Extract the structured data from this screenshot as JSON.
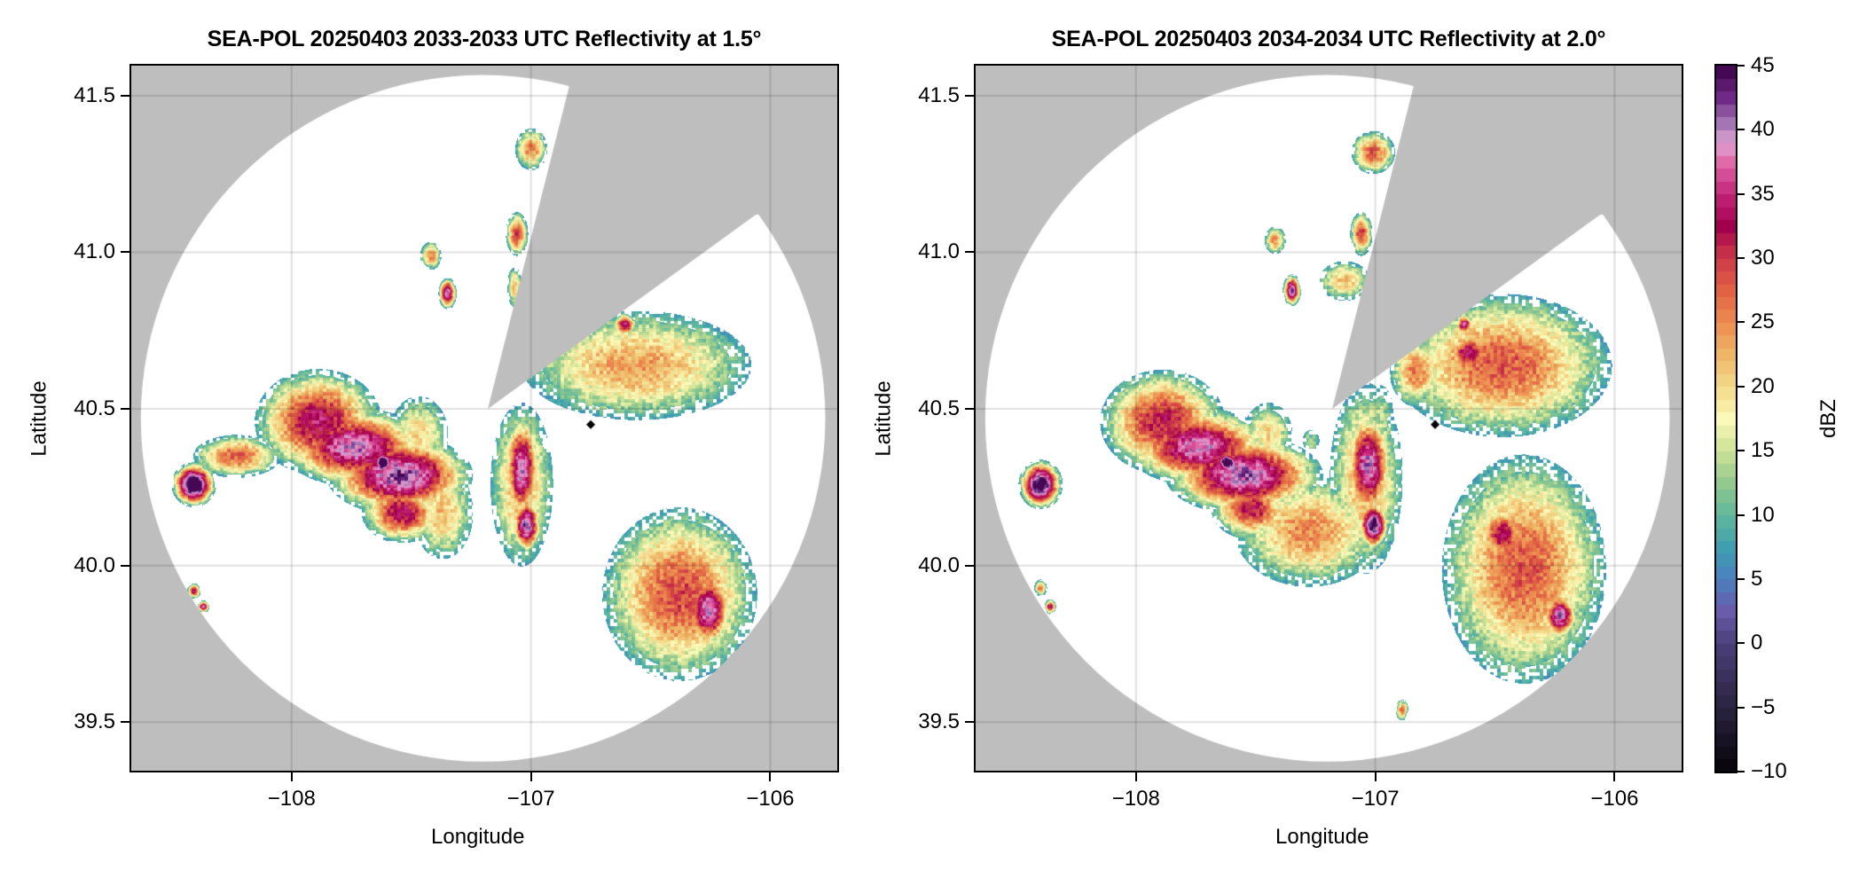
{
  "chart_data": [
    {
      "type": "heatmap",
      "subtype": "radar-ppi",
      "title": "SEA-POL 20250403 2033-2033 UTC Reflectivity at 1.5°",
      "xlabel": "Longitude",
      "ylabel": "Latitude",
      "xlim": [
        -108.67,
        -105.72
      ],
      "ylim": [
        39.345,
        41.596
      ],
      "xticks": [
        -108,
        -107,
        -106
      ],
      "xtick_labels": [
        "−108",
        "−107",
        "−106"
      ],
      "yticks": [
        39.5,
        40.0,
        40.5,
        41.0,
        41.5
      ],
      "ytick_labels": [
        "39.5",
        "40.0",
        "40.5",
        "41.0",
        "41.5"
      ],
      "grid": true,
      "radar_site": {
        "lon": -107.18,
        "lat": 40.5
      },
      "marker": {
        "lon": -106.75,
        "lat": 40.45,
        "shape": "diamond",
        "color": "#000000"
      },
      "coverage_circle": {
        "center_lon": -107.2,
        "center_lat": 40.47,
        "radius_lon": 1.43,
        "radius_lat": 1.096
      },
      "blocked_sector": [
        {
          "lon": -106.84,
          "lat": 41.53
        },
        {
          "lon": -106.06,
          "lat": 41.12
        }
      ],
      "cells": [
        {
          "lon": -107.89,
          "lat": 40.46,
          "slon": 0.11,
          "slat": 0.07,
          "dbz": 24
        },
        {
          "lon": -107.74,
          "lat": 40.38,
          "slon": 0.12,
          "slat": 0.05,
          "dbz": 30
        },
        {
          "lon": -107.55,
          "lat": 40.29,
          "slon": 0.12,
          "slat": 0.05,
          "dbz": 32
        },
        {
          "lon": -107.62,
          "lat": 40.33,
          "slon": 0.02,
          "slat": 0.015,
          "dbz": 42
        },
        {
          "lon": -107.54,
          "lat": 40.17,
          "slon": 0.07,
          "slat": 0.04,
          "dbz": 24
        },
        {
          "lon": -107.47,
          "lat": 40.42,
          "slon": 0.06,
          "slat": 0.06,
          "dbz": 10
        },
        {
          "lon": -108.41,
          "lat": 40.26,
          "slon": 0.035,
          "slat": 0.027,
          "dbz": 41
        },
        {
          "lon": -108.23,
          "lat": 40.35,
          "slon": 0.08,
          "slat": 0.03,
          "dbz": 18
        },
        {
          "lon": -107.04,
          "lat": 40.31,
          "slon": 0.03,
          "slat": 0.07,
          "dbz": 30
        },
        {
          "lon": -107.02,
          "lat": 40.13,
          "slon": 0.025,
          "slat": 0.035,
          "dbz": 32
        },
        {
          "lon": -107.04,
          "lat": 40.26,
          "slon": 0.06,
          "slat": 0.12,
          "dbz": 14
        },
        {
          "lon": -107.37,
          "lat": 40.17,
          "slon": 0.06,
          "slat": 0.07,
          "dbz": 12
        },
        {
          "lon": -106.56,
          "lat": 40.64,
          "slon": 0.22,
          "slat": 0.08,
          "dbz": 14
        },
        {
          "lon": -106.61,
          "lat": 40.77,
          "slon": 0.02,
          "slat": 0.015,
          "dbz": 26
        },
        {
          "lon": -106.38,
          "lat": 39.91,
          "slon": 0.14,
          "slat": 0.12,
          "dbz": 19
        },
        {
          "lon": -106.26,
          "lat": 39.86,
          "slon": 0.04,
          "slat": 0.05,
          "dbz": 30
        },
        {
          "lon": -107.35,
          "lat": 40.87,
          "slon": 0.015,
          "slat": 0.02,
          "dbz": 30
        },
        {
          "lon": -107.0,
          "lat": 41.33,
          "slon": 0.03,
          "slat": 0.03,
          "dbz": 16
        },
        {
          "lon": -107.06,
          "lat": 41.06,
          "slon": 0.02,
          "slat": 0.03,
          "dbz": 20
        },
        {
          "lon": -107.42,
          "lat": 40.99,
          "slon": 0.02,
          "slat": 0.02,
          "dbz": 16
        },
        {
          "lon": -107.07,
          "lat": 40.89,
          "slon": 0.015,
          "slat": 0.03,
          "dbz": 12
        },
        {
          "lon": -108.41,
          "lat": 39.92,
          "slon": 0.012,
          "slat": 0.01,
          "dbz": 24
        },
        {
          "lon": -108.37,
          "lat": 39.87,
          "slon": 0.01,
          "slat": 0.008,
          "dbz": 28
        }
      ]
    },
    {
      "type": "heatmap",
      "subtype": "radar-ppi",
      "title": "SEA-POL 20250403 2034-2034 UTC Reflectivity at 2.0°",
      "xlabel": "Longitude",
      "ylabel": "Latitude",
      "xlim": [
        -108.67,
        -105.72
      ],
      "ylim": [
        39.345,
        41.596
      ],
      "xticks": [
        -108,
        -107,
        -106
      ],
      "xtick_labels": [
        "−108",
        "−107",
        "−106"
      ],
      "yticks": [
        39.5,
        40.0,
        40.5,
        41.0,
        41.5
      ],
      "ytick_labels": [
        "39.5",
        "40.0",
        "40.5",
        "41.0",
        "41.5"
      ],
      "grid": true,
      "radar_site": {
        "lon": -107.18,
        "lat": 40.5
      },
      "marker": {
        "lon": -106.75,
        "lat": 40.45,
        "shape": "diamond",
        "color": "#000000"
      },
      "coverage_circle": {
        "center_lon": -107.2,
        "center_lat": 40.47,
        "radius_lon": 1.43,
        "radius_lat": 1.096
      },
      "blocked_sector": [
        {
          "lon": -106.84,
          "lat": 41.53
        },
        {
          "lon": -106.06,
          "lat": 41.12
        }
      ],
      "cells": [
        {
          "lon": -107.89,
          "lat": 40.46,
          "slon": 0.11,
          "slat": 0.07,
          "dbz": 22
        },
        {
          "lon": -107.74,
          "lat": 40.38,
          "slon": 0.12,
          "slat": 0.05,
          "dbz": 29
        },
        {
          "lon": -107.55,
          "lat": 40.29,
          "slon": 0.13,
          "slat": 0.05,
          "dbz": 31
        },
        {
          "lon": -107.62,
          "lat": 40.33,
          "slon": 0.02,
          "slat": 0.015,
          "dbz": 41
        },
        {
          "lon": -107.52,
          "lat": 40.18,
          "slon": 0.07,
          "slat": 0.04,
          "dbz": 22
        },
        {
          "lon": -107.45,
          "lat": 40.42,
          "slon": 0.05,
          "slat": 0.05,
          "dbz": 10
        },
        {
          "lon": -108.4,
          "lat": 40.26,
          "slon": 0.035,
          "slat": 0.03,
          "dbz": 38
        },
        {
          "lon": -107.03,
          "lat": 40.32,
          "slon": 0.04,
          "slat": 0.07,
          "dbz": 30
        },
        {
          "lon": -107.01,
          "lat": 40.13,
          "slon": 0.025,
          "slat": 0.03,
          "dbz": 36
        },
        {
          "lon": -107.04,
          "lat": 40.28,
          "slon": 0.07,
          "slat": 0.14,
          "dbz": 14
        },
        {
          "lon": -106.98,
          "lat": 40.49,
          "slon": 0.03,
          "slat": 0.05,
          "dbz": 4
        },
        {
          "lon": -107.27,
          "lat": 40.4,
          "slon": 0.02,
          "slat": 0.02,
          "dbz": 4
        },
        {
          "lon": -107.28,
          "lat": 40.11,
          "slon": 0.14,
          "slat": 0.08,
          "dbz": 15
        },
        {
          "lon": -106.47,
          "lat": 40.64,
          "slon": 0.2,
          "slat": 0.1,
          "dbz": 18
        },
        {
          "lon": -106.61,
          "lat": 40.68,
          "slon": 0.04,
          "slat": 0.03,
          "dbz": 24
        },
        {
          "lon": -106.63,
          "lat": 40.77,
          "slon": 0.015,
          "slat": 0.015,
          "dbz": 26
        },
        {
          "lon": -106.83,
          "lat": 40.62,
          "slon": 0.05,
          "slat": 0.05,
          "dbz": 16
        },
        {
          "lon": -106.38,
          "lat": 39.99,
          "slon": 0.15,
          "slat": 0.16,
          "dbz": 18
        },
        {
          "lon": -106.47,
          "lat": 40.1,
          "slon": 0.04,
          "slat": 0.04,
          "dbz": 24
        },
        {
          "lon": -106.23,
          "lat": 39.84,
          "slon": 0.03,
          "slat": 0.03,
          "dbz": 30
        },
        {
          "lon": -107.35,
          "lat": 40.88,
          "slon": 0.015,
          "slat": 0.02,
          "dbz": 32
        },
        {
          "lon": -107.01,
          "lat": 41.32,
          "slon": 0.04,
          "slat": 0.03,
          "dbz": 18
        },
        {
          "lon": -107.06,
          "lat": 41.06,
          "slon": 0.02,
          "slat": 0.03,
          "dbz": 20
        },
        {
          "lon": -107.13,
          "lat": 40.91,
          "slon": 0.05,
          "slat": 0.03,
          "dbz": 12
        },
        {
          "lon": -107.42,
          "lat": 41.04,
          "slon": 0.02,
          "slat": 0.02,
          "dbz": 15
        },
        {
          "lon": -108.36,
          "lat": 39.87,
          "slon": 0.01,
          "slat": 0.01,
          "dbz": 24
        },
        {
          "lon": -108.4,
          "lat": 39.93,
          "slon": 0.012,
          "slat": 0.012,
          "dbz": 16
        },
        {
          "lon": -106.89,
          "lat": 39.54,
          "slon": 0.012,
          "slat": 0.015,
          "dbz": 16
        }
      ]
    }
  ],
  "colorbar": {
    "label": "dBZ",
    "range": [
      -10,
      45
    ],
    "step": 1,
    "ticks": [
      -10,
      -5,
      0,
      5,
      10,
      15,
      20,
      25,
      30,
      35,
      40,
      45
    ],
    "tick_labels": [
      "−10",
      "−5",
      "0",
      "5",
      "10",
      "15",
      "20",
      "25",
      "30",
      "35",
      "40",
      "45"
    ],
    "stops": [
      {
        "v": -10,
        "c": "#050308"
      },
      {
        "v": -5,
        "c": "#2b2340"
      },
      {
        "v": 0,
        "c": "#4b3f7a"
      },
      {
        "v": 2.5,
        "c": "#6a5caa"
      },
      {
        "v": 5,
        "c": "#4a80c0"
      },
      {
        "v": 7.5,
        "c": "#3f9fb0"
      },
      {
        "v": 10,
        "c": "#5fb89c"
      },
      {
        "v": 12.5,
        "c": "#93c98f"
      },
      {
        "v": 15,
        "c": "#cde395"
      },
      {
        "v": 17.5,
        "c": "#fbf9b7"
      },
      {
        "v": 20,
        "c": "#f3d98a"
      },
      {
        "v": 22.5,
        "c": "#efb667"
      },
      {
        "v": 25,
        "c": "#ec8b4f"
      },
      {
        "v": 27.5,
        "c": "#e16243"
      },
      {
        "v": 30,
        "c": "#cc3a48"
      },
      {
        "v": 32.5,
        "c": "#a2004e"
      },
      {
        "v": 35,
        "c": "#c4247a"
      },
      {
        "v": 37.5,
        "c": "#e069a8"
      },
      {
        "v": 39,
        "c": "#e2a3d3"
      },
      {
        "v": 40,
        "c": "#b386c0"
      },
      {
        "v": 42.5,
        "c": "#6e2a86"
      },
      {
        "v": 45,
        "c": "#3b0048"
      }
    ]
  },
  "style": {
    "background_outside": "#bebebe",
    "coverage_fill": "#ffffff",
    "grid_color": "#c8c8c8"
  }
}
